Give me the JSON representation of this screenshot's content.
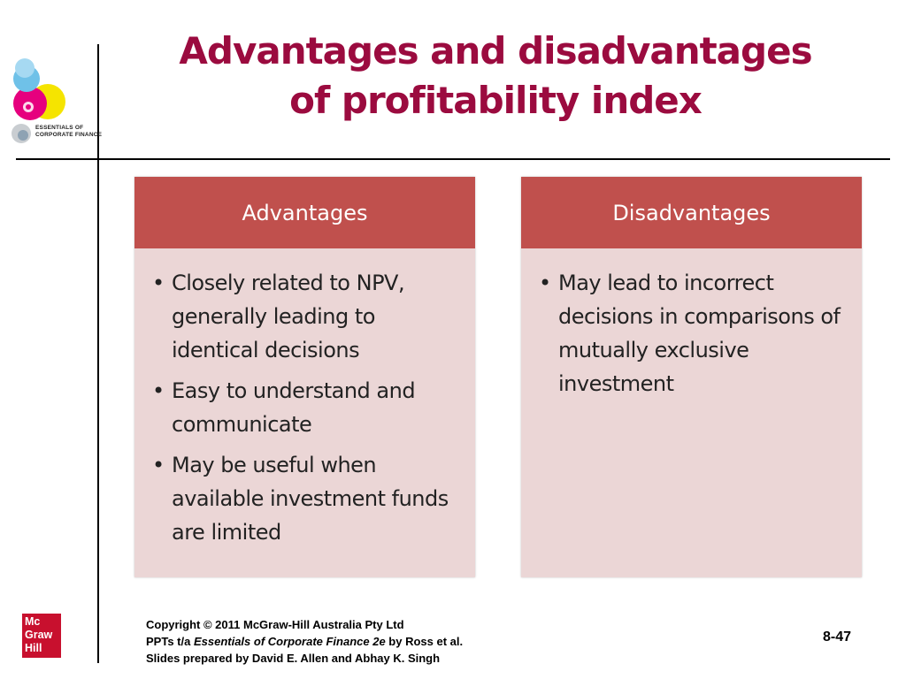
{
  "title": {
    "line1": "Advantages and disadvantages",
    "line2": "of profitability index"
  },
  "logo": {
    "name": "essentials-of-corporate-finance-logo",
    "text_line1": "ESSENTIALS OF",
    "text_line2": "CORPORATE FINANCE"
  },
  "advantages": {
    "header": "Advantages",
    "items": [
      "Closely related to NPV, generally leading to identical decisions",
      "Easy to understand and communicate",
      "May be useful when available investment funds are limited"
    ]
  },
  "disadvantages": {
    "header": "Disadvantages",
    "items": [
      "May lead to incorrect decisions in comparisons of mutually exclusive investment"
    ]
  },
  "publisher_logo": {
    "line1": "Mc",
    "line2": "Graw",
    "line3": "Hill"
  },
  "footer": {
    "copyright": "Copyright © 2011 McGraw-Hill Australia Pty Ltd",
    "ppts_prefix": "PPTs t/a ",
    "book_title": "Essentials of Corporate Finance 2e",
    "ppts_suffix": " by Ross et al.",
    "prepared_by": "Slides prepared by David E. Allen and Abhay K. Singh"
  },
  "page_number": "8-47",
  "colors": {
    "title": "#9b0b3f",
    "header_fill": "#c0504d",
    "box_fill": "#ebd6d6",
    "publisher_red": "#c8102e"
  }
}
